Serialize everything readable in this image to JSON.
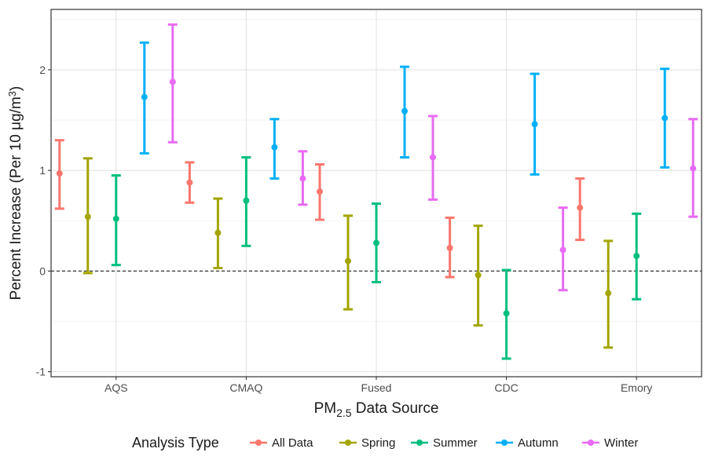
{
  "chart_data": {
    "type": "errorbar",
    "xlabel_main": "PM",
    "xlabel_sub": "2.5",
    "xlabel_rest": " Data Source",
    "ylabel_main": "Percent Increase (Per 10 μg/m",
    "ylabel_sup": "3",
    "ylabel_end": ")",
    "ylim": [
      -1.05,
      2.6
    ],
    "yticks": [
      -1,
      0,
      1,
      2
    ],
    "ytick_labels": [
      "-1",
      "0",
      "1",
      "2"
    ],
    "categories": [
      "AQS",
      "CMAQ",
      "Fused",
      "CDC",
      "Emory"
    ],
    "reference_line": 0,
    "grid": true,
    "legend_position": "bottom",
    "legend_title": "Analysis Type",
    "series": [
      {
        "name": "All Data",
        "color": "#F8766D",
        "estimate": [
          0.97,
          0.88,
          0.79,
          0.23,
          0.63
        ],
        "lower": [
          0.62,
          0.68,
          0.51,
          -0.06,
          0.31
        ],
        "upper": [
          1.3,
          1.08,
          1.06,
          0.53,
          0.92
        ]
      },
      {
        "name": "Spring",
        "color": "#A3A500",
        "estimate": [
          0.54,
          0.38,
          0.1,
          -0.04,
          -0.22
        ],
        "lower": [
          -0.02,
          0.03,
          -0.38,
          -0.54,
          -0.76
        ],
        "upper": [
          1.12,
          0.72,
          0.55,
          0.45,
          0.3
        ]
      },
      {
        "name": "Summer",
        "color": "#00BF7D",
        "estimate": [
          0.52,
          0.7,
          0.28,
          -0.42,
          0.15
        ],
        "lower": [
          0.06,
          0.25,
          -0.11,
          -0.87,
          -0.28
        ],
        "upper": [
          0.95,
          1.13,
          0.67,
          0.01,
          0.57
        ]
      },
      {
        "name": "Autumn",
        "color": "#00B0F6",
        "estimate": [
          1.73,
          1.23,
          1.59,
          1.46,
          1.52
        ],
        "lower": [
          1.17,
          0.92,
          1.13,
          0.96,
          1.03
        ],
        "upper": [
          2.27,
          1.51,
          2.03,
          1.96,
          2.01
        ]
      },
      {
        "name": "Winter",
        "color": "#E76BF3",
        "estimate": [
          1.88,
          0.92,
          1.13,
          0.21,
          1.02
        ],
        "lower": [
          1.28,
          0.66,
          0.71,
          -0.19,
          0.54
        ],
        "upper": [
          2.45,
          1.19,
          1.54,
          0.63,
          1.51
        ]
      }
    ]
  }
}
